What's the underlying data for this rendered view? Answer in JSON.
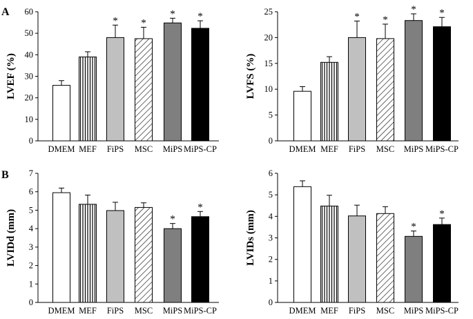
{
  "panel_labels": {
    "a": "A",
    "b": "B"
  },
  "colors": {
    "dmem": "#ffffff",
    "fips": "#c0c0c0",
    "mips": "#7f7f7f",
    "mipscp": "#000000",
    "stroke": "#000000"
  },
  "chart_data": [
    {
      "id": "lvef",
      "type": "bar",
      "title": "",
      "xlabel": "",
      "ylabel": "LVEF (%)",
      "categories": [
        "DMEM",
        "MEF",
        "FiPS",
        "MSC",
        "MiPS",
        "MiPS-CP"
      ],
      "fills": [
        "white",
        "vlines",
        "lightgray",
        "hatch",
        "darkgray",
        "black"
      ],
      "values": [
        25.8,
        39.0,
        48.0,
        47.5,
        54.8,
        52.3
      ],
      "errors": [
        2.2,
        2.4,
        5.8,
        5.3,
        2.2,
        3.5
      ],
      "significant": [
        false,
        false,
        true,
        true,
        true,
        true
      ],
      "significance_marker": "*",
      "ylim": [
        0,
        60
      ],
      "yticks": [
        0,
        10,
        20,
        30,
        40,
        50,
        60
      ]
    },
    {
      "id": "lvfs",
      "type": "bar",
      "title": "",
      "xlabel": "",
      "ylabel": "LVFS (%)",
      "categories": [
        "DMEM",
        "MEF",
        "FiPS",
        "MSC",
        "MiPS",
        "MiPS-CP"
      ],
      "fills": [
        "white",
        "vlines",
        "lightgray",
        "hatch",
        "darkgray",
        "black"
      ],
      "values": [
        9.6,
        15.2,
        20.0,
        19.8,
        23.3,
        22.1
      ],
      "errors": [
        0.9,
        1.1,
        3.2,
        2.8,
        1.3,
        1.8
      ],
      "significant": [
        false,
        false,
        true,
        true,
        true,
        true
      ],
      "significance_marker": "*",
      "ylim": [
        0,
        25
      ],
      "yticks": [
        0,
        5,
        10,
        15,
        20,
        25
      ]
    },
    {
      "id": "lvidd",
      "type": "bar",
      "title": "",
      "xlabel": "",
      "ylabel": "LVIDd (mm)",
      "categories": [
        "DMEM",
        "MEF",
        "FiPS",
        "MSC",
        "MiPS",
        "MiPS-CP"
      ],
      "fills": [
        "white",
        "vlines",
        "lightgray",
        "hatch",
        "darkgray",
        "black"
      ],
      "values": [
        5.95,
        5.32,
        4.98,
        5.15,
        4.0,
        4.65
      ],
      "errors": [
        0.25,
        0.5,
        0.45,
        0.25,
        0.28,
        0.28
      ],
      "significant": [
        false,
        false,
        false,
        false,
        true,
        true
      ],
      "significance_marker": "*",
      "ylim": [
        0,
        7
      ],
      "yticks": [
        0,
        1,
        2,
        3,
        4,
        5,
        6,
        7
      ]
    },
    {
      "id": "lvids",
      "type": "bar",
      "title": "",
      "xlabel": "",
      "ylabel": "LVIDs (mm)",
      "categories": [
        "DMEM",
        "MEF",
        "FiPS",
        "MSC",
        "MiPS",
        "MiPS-CP"
      ],
      "fills": [
        "white",
        "vlines",
        "lightgray",
        "hatch",
        "darkgray",
        "black"
      ],
      "values": [
        5.38,
        4.48,
        4.02,
        4.13,
        3.07,
        3.62
      ],
      "errors": [
        0.27,
        0.5,
        0.5,
        0.32,
        0.25,
        0.3
      ],
      "significant": [
        false,
        false,
        false,
        false,
        true,
        true
      ],
      "significance_marker": "*",
      "ylim": [
        0,
        6
      ],
      "yticks": [
        0,
        1,
        2,
        3,
        4,
        5,
        6
      ]
    }
  ]
}
